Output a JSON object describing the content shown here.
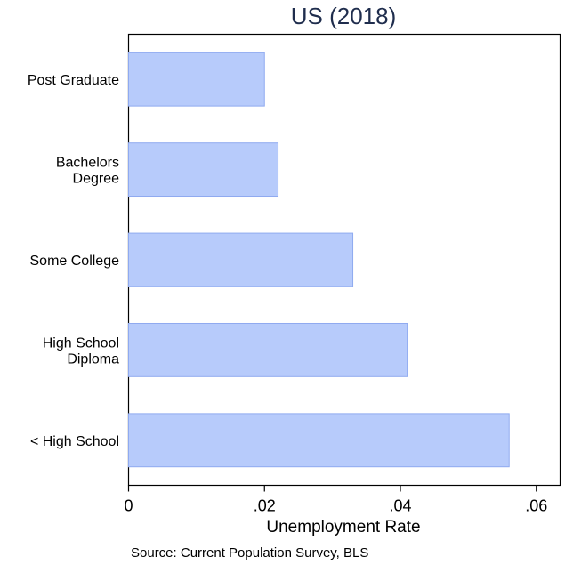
{
  "chart_data": {
    "type": "bar",
    "orientation": "horizontal",
    "title": "US (2018)",
    "xlabel": "Unemployment Rate",
    "ylabel": "",
    "source_note": "Source: Current Population Survey, BLS",
    "categories": [
      [
        "Post Graduate"
      ],
      [
        "Bachelors",
        "Degree"
      ],
      [
        "Some College"
      ],
      [
        "High School",
        "Diploma"
      ],
      [
        "< High School"
      ]
    ],
    "values": [
      0.02,
      0.022,
      0.033,
      0.041,
      0.056
    ],
    "xlim": [
      0,
      0.0635
    ],
    "xticks": [
      0,
      0.02,
      0.04,
      0.06
    ],
    "xtick_labels": [
      "0",
      ".02",
      ".04",
      ".06"
    ],
    "grid": false,
    "bar_color": "#b7cbfb",
    "bar_edge_color": "#8faaf0"
  }
}
